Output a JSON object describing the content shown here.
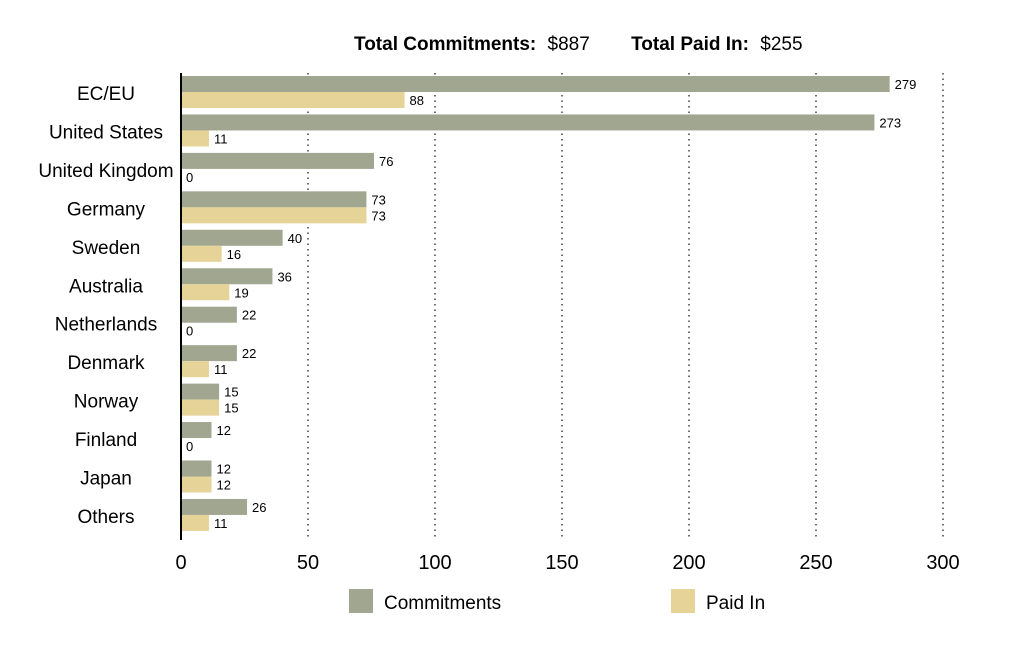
{
  "header": {
    "commitments_label": "Total Commitments:",
    "commitments_value": "$887",
    "paid_label": "Total Paid In:",
    "paid_value": "$255"
  },
  "colors": {
    "commitments": "#a0a690",
    "paid_in": "#e5d397",
    "axis": "#000000",
    "grid": "#333333"
  },
  "chart_data": {
    "type": "bar",
    "orientation": "horizontal",
    "categories": [
      "EC/EU",
      "United States",
      "United Kingdom",
      "Germany",
      "Sweden",
      "Australia",
      "Netherlands",
      "Denmark",
      "Norway",
      "Finland",
      "Japan",
      "Others"
    ],
    "series": [
      {
        "name": "Commitments",
        "values": [
          279,
          273,
          76,
          73,
          40,
          36,
          22,
          22,
          15,
          12,
          12,
          26
        ]
      },
      {
        "name": "Paid In",
        "values": [
          88,
          11,
          0,
          73,
          16,
          19,
          0,
          11,
          15,
          0,
          12,
          11
        ]
      }
    ],
    "xlim": [
      0,
      300
    ],
    "xticks": [
      0,
      50,
      100,
      150,
      200,
      250,
      300
    ],
    "grid": "vertical dotted",
    "legend": "bottom"
  }
}
